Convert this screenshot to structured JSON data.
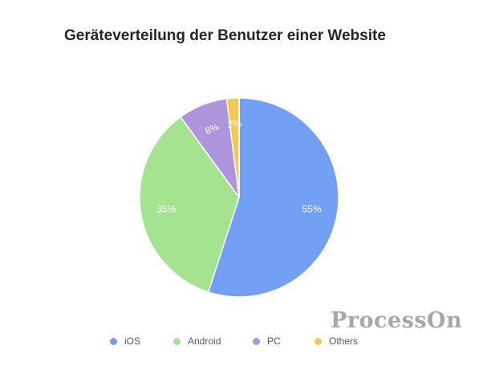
{
  "chart_data": {
    "type": "pie",
    "title": "Geräteverteilung der Benutzer einer Website",
    "categories": [
      "iOS",
      "Android",
      "PC",
      "Others"
    ],
    "values": [
      55,
      35,
      8,
      2
    ],
    "labels": [
      "55%",
      "35%",
      "8%",
      "2%"
    ],
    "colors": [
      "#739ff5",
      "#a6e391",
      "#ae95dc",
      "#f5c94f"
    ],
    "legend_position": "bottom"
  },
  "watermark": "ProcessOn"
}
